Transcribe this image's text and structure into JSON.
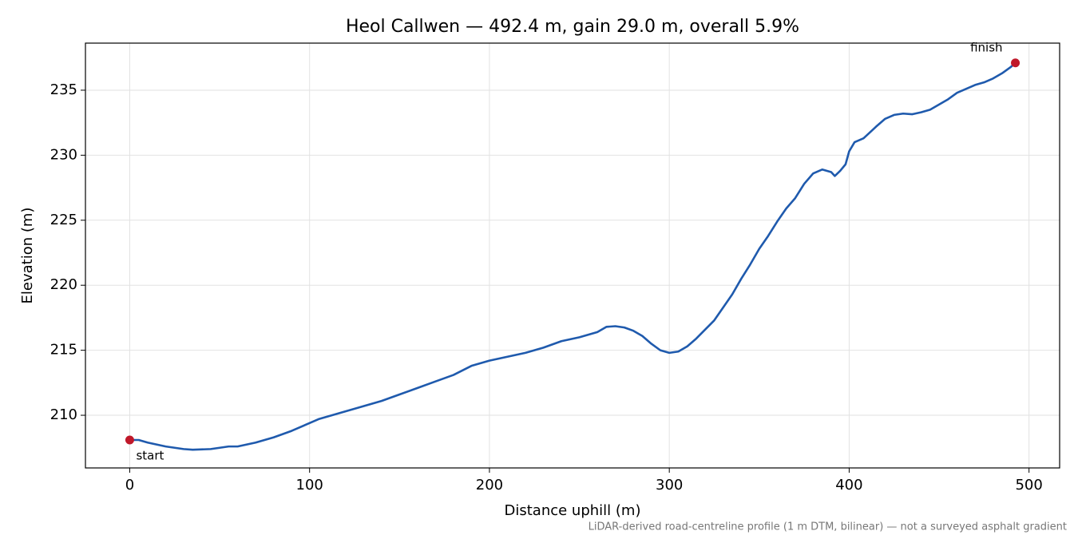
{
  "chart_data": {
    "type": "line",
    "title": "Heol Callwen — 492.4 m, gain 29.0 m, overall 5.9%",
    "x_label": "Distance uphill (m)",
    "y_label": "Elevation (m)",
    "footnote": "LiDAR-derived road-centreline profile (1 m DTM, bilinear) — not a surveyed asphalt gradient",
    "x": [
      0,
      5,
      10,
      20,
      30,
      35,
      45,
      55,
      60,
      70,
      80,
      90,
      100,
      105,
      110,
      120,
      130,
      140,
      150,
      160,
      170,
      180,
      190,
      200,
      210,
      220,
      230,
      240,
      250,
      260,
      265,
      270,
      275,
      280,
      285,
      290,
      295,
      300,
      305,
      310,
      315,
      320,
      325,
      330,
      335,
      340,
      345,
      350,
      355,
      360,
      365,
      370,
      375,
      380,
      385,
      390,
      392,
      395,
      398,
      400,
      403,
      408,
      415,
      420,
      425,
      430,
      435,
      440,
      445,
      450,
      455,
      460,
      465,
      470,
      475,
      480,
      485,
      490,
      492.4
    ],
    "series": [
      {
        "name": "Elevation",
        "color": "#1f5aad",
        "values": [
          208.1,
          208.1,
          207.9,
          207.6,
          207.4,
          207.35,
          207.4,
          207.6,
          207.6,
          207.9,
          208.3,
          208.8,
          209.4,
          209.7,
          209.9,
          210.3,
          210.7,
          211.1,
          211.6,
          212.1,
          212.6,
          213.1,
          213.8,
          214.2,
          214.5,
          214.8,
          215.2,
          215.7,
          216.0,
          216.4,
          216.8,
          216.85,
          216.75,
          216.5,
          216.1,
          215.5,
          215.0,
          214.8,
          214.9,
          215.3,
          215.9,
          216.6,
          217.3,
          218.3,
          219.3,
          220.5,
          221.6,
          222.8,
          223.8,
          224.9,
          225.9,
          226.7,
          227.8,
          228.6,
          228.9,
          228.7,
          228.4,
          228.8,
          229.3,
          230.3,
          231.0,
          231.3,
          232.2,
          232.8,
          233.1,
          233.2,
          233.15,
          233.3,
          233.5,
          233.9,
          234.3,
          234.8,
          235.1,
          235.4,
          235.6,
          235.9,
          236.3,
          236.8,
          237.1
        ]
      }
    ],
    "markers": {
      "x": [
        0,
        492.4
      ],
      "values": [
        208.1,
        237.1
      ],
      "labels": [
        "start",
        "finish"
      ],
      "color": "#c0182a"
    },
    "xlim": [
      -24.62,
      517.02
    ],
    "xticks": [
      0,
      100,
      200,
      300,
      400,
      500
    ],
    "ylim": [
      205.95,
      238.62
    ],
    "yticks": [
      210,
      215,
      220,
      225,
      230,
      235
    ],
    "grid": true
  }
}
